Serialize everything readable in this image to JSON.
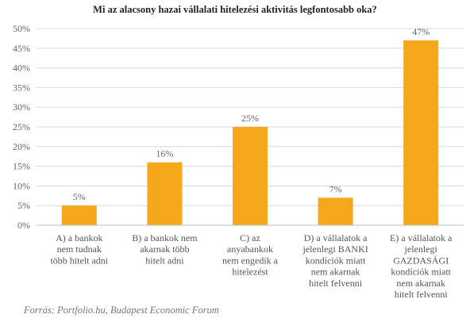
{
  "chart_data": {
    "type": "bar",
    "title": "Mi az alacsony hazai vállalati hitelezési aktivitás legfontosabb oka?",
    "categories": [
      [
        "A) a bankok",
        "nem tudnak",
        "több hitelt adni"
      ],
      [
        "B) a bankok nem",
        "akarnak több",
        "hitelt adni"
      ],
      [
        "C) az",
        "anyabankok",
        "nem engedik a",
        "hitelezést"
      ],
      [
        "D) a vállalatok a",
        "jelenlegi BANKI",
        "kondíciók miatt",
        "nem akarnak",
        "hitelt felvenni"
      ],
      [
        "E) a vállalatok a",
        "jelenlegi",
        "GAZDASÁGI",
        "kondíciók miatt",
        "nem akarnak",
        "hitelt felvenni"
      ]
    ],
    "values": [
      5,
      16,
      25,
      7,
      47
    ],
    "data_labels": [
      "5%",
      "16%",
      "25%",
      "7%",
      "47%"
    ],
    "ylim": [
      0,
      50
    ],
    "yticks": [
      0,
      5,
      10,
      15,
      20,
      25,
      30,
      35,
      40,
      45,
      50
    ],
    "ytick_labels": [
      "0%",
      "5%",
      "10%",
      "15%",
      "20%",
      "25%",
      "30%",
      "35%",
      "40%",
      "45%",
      "50%"
    ],
    "grid": true,
    "bar_color": "#F5A81C",
    "grid_color": "#D9D9D9",
    "axis_color": "#BFBFBF"
  },
  "source": "Forrás: Portfolio.hu, Budapest Economic Forum"
}
